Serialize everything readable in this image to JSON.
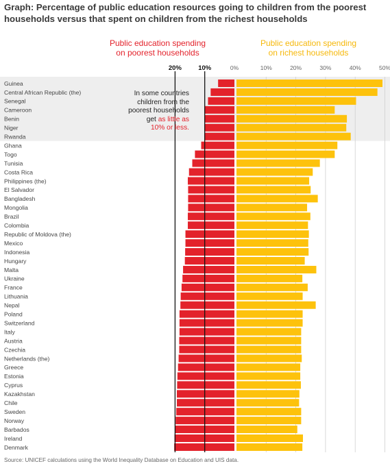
{
  "title": "Graph: Percentage of public education resources going to children from the poorest households versus that spent on children from the richest households",
  "series_heads": {
    "poorest": [
      "Public education spending",
      "on poorest households"
    ],
    "richest": [
      "Public education spending",
      "on richest households"
    ]
  },
  "annotation": {
    "lines": [
      "In some countries",
      "children from the",
      "poorest households"
    ],
    "get_word": "get ",
    "highlight1": "as little as",
    "highlight2": "10% or less."
  },
  "source": "Source: UNICEF calculations using the World Inequality Database on Education and UIS data.",
  "colors": {
    "poorest": "#e3222b",
    "richest": "#fdc20c",
    "highlight_band": "#eeeeee",
    "reference_line": "#111111"
  },
  "chart_data": {
    "type": "bar",
    "orientation": "horizontal",
    "layout": "diverging (poorest to the left, richest to the right)",
    "highlight_band_countries": [
      "Guinea",
      "Central African Republic (the)",
      "Senegal",
      "Cameroon",
      "Benin",
      "Niger",
      "Rwanda"
    ],
    "poorest_axis": {
      "ticks": [
        20,
        10,
        0
      ],
      "tick_labels": [
        "20%",
        "10%",
        "0%"
      ],
      "range": [
        0,
        20
      ],
      "reference_lines": [
        20,
        10
      ]
    },
    "richest_axis": {
      "ticks": [
        10,
        20,
        30,
        40,
        50
      ],
      "tick_labels": [
        "10%",
        "20%",
        "30%",
        "40%",
        "50%"
      ],
      "range": [
        0,
        50
      ],
      "grid": true
    },
    "categories": [
      "Guinea",
      "Central African Republic (the)",
      "Senegal",
      "Cameroon",
      "Benin",
      "Niger",
      "Rwanda",
      "Ghana",
      "Togo",
      "Tunisia",
      "Costa Rica",
      "Philippines (the)",
      "El Salvador",
      "Bangladesh",
      "Mongolia",
      "Brazil",
      "Colombia",
      "Republic of Moldova (the)",
      "Mexico",
      "Indonesia",
      "Hungary",
      "Malta",
      "Ukraine",
      "France",
      "Lithuania",
      "Nepal",
      "Poland",
      "Switzerland",
      "Italy",
      "Austria",
      "Czechia",
      "Netherlands (the)",
      "Greece",
      "Estonia",
      "Cyprus",
      "Kazakhstan",
      "Chile",
      "Sweden",
      "Norway",
      "Barbados",
      "Ireland",
      "Denmark"
    ],
    "series": [
      {
        "name": "Public education spending on poorest households",
        "values": [
          5.5,
          8.0,
          8.9,
          10.0,
          10.0,
          10.0,
          10.1,
          11.2,
          13.3,
          14.2,
          15.3,
          15.7,
          15.6,
          15.6,
          15.6,
          15.7,
          15.7,
          16.5,
          16.5,
          16.6,
          16.7,
          17.3,
          17.5,
          17.8,
          18.1,
          18.2,
          18.5,
          18.5,
          18.5,
          18.6,
          18.6,
          18.8,
          19.0,
          19.2,
          19.3,
          19.4,
          19.4,
          19.6,
          19.8,
          19.9,
          20.2,
          20.3
        ]
      },
      {
        "name": "Public education spending on richest households",
        "values": [
          49.2,
          47.5,
          40.3,
          33.1,
          37.2,
          37.0,
          38.5,
          34.0,
          33.1,
          28.1,
          25.7,
          24.5,
          25.0,
          27.4,
          23.8,
          24.9,
          24.1,
          24.4,
          24.2,
          24.3,
          23.0,
          26.9,
          22.2,
          24.0,
          22.3,
          26.7,
          22.3,
          22.3,
          21.8,
          21.8,
          21.8,
          22.0,
          21.5,
          21.5,
          21.7,
          21.2,
          21.1,
          21.8,
          21.8,
          20.5,
          22.4,
          22.2
        ]
      }
    ]
  }
}
